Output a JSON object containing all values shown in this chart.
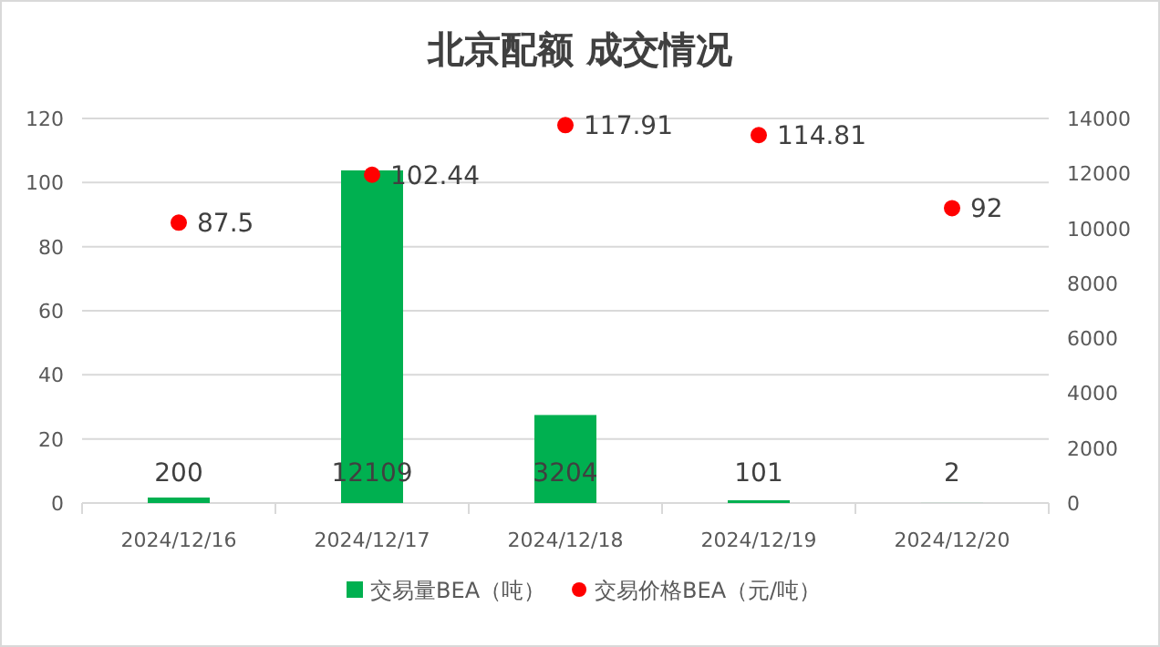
{
  "chart_data": {
    "type": "bar",
    "title": "北京配额 成交情况",
    "categories": [
      "2024/12/16",
      "2024/12/17",
      "2024/12/18",
      "2024/12/19",
      "2024/12/20"
    ],
    "series": [
      {
        "name": "交易量BEA（吨）",
        "axis": "y2",
        "color": "#00b050",
        "values": [
          200,
          12109,
          3204,
          101,
          2
        ]
      },
      {
        "name": "交易价格BEA（元/吨）",
        "type": "scatter",
        "color": "#ff0000",
        "values": [
          87.5,
          102.44,
          117.91,
          114.81,
          92
        ]
      }
    ],
    "ylim": [
      0,
      120
    ],
    "yticks": [
      0,
      20,
      40,
      60,
      80,
      100,
      120
    ],
    "y2lim": [
      0,
      14000
    ],
    "y2ticks": [
      0,
      2000,
      4000,
      6000,
      8000,
      10000,
      12000,
      14000
    ],
    "data_labels": true,
    "grid": "y",
    "legend": "bottom",
    "marker": "circle"
  }
}
